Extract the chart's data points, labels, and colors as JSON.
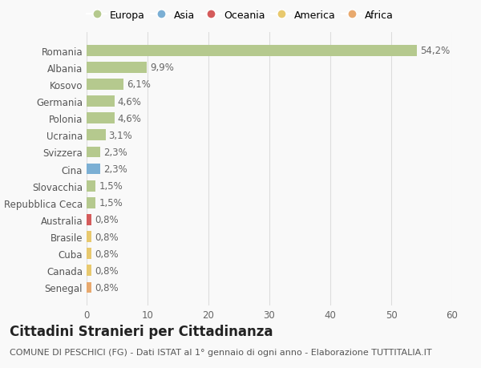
{
  "countries": [
    "Romania",
    "Albania",
    "Kosovo",
    "Germania",
    "Polonia",
    "Ucraina",
    "Svizzera",
    "Cina",
    "Slovacchia",
    "Repubblica Ceca",
    "Australia",
    "Brasile",
    "Cuba",
    "Canada",
    "Senegal"
  ],
  "values": [
    54.2,
    9.9,
    6.1,
    4.6,
    4.6,
    3.1,
    2.3,
    2.3,
    1.5,
    1.5,
    0.8,
    0.8,
    0.8,
    0.8,
    0.8
  ],
  "labels": [
    "54,2%",
    "9,9%",
    "6,1%",
    "4,6%",
    "4,6%",
    "3,1%",
    "2,3%",
    "2,3%",
    "1,5%",
    "1,5%",
    "0,8%",
    "0,8%",
    "0,8%",
    "0,8%",
    "0,8%"
  ],
  "colors": [
    "#b5c98e",
    "#b5c98e",
    "#b5c98e",
    "#b5c98e",
    "#b5c98e",
    "#b5c98e",
    "#b5c98e",
    "#7bafd4",
    "#b5c98e",
    "#b5c98e",
    "#d45b5b",
    "#e8c96e",
    "#e8c96e",
    "#e8c96e",
    "#e8a96e"
  ],
  "legend_labels": [
    "Europa",
    "Asia",
    "Oceania",
    "America",
    "Africa"
  ],
  "legend_colors": [
    "#b5c98e",
    "#7bafd4",
    "#d45b5b",
    "#e8c96e",
    "#e8a96e"
  ],
  "title": "Cittadini Stranieri per Cittadinanza",
  "subtitle": "COMUNE DI PESCHICI (FG) - Dati ISTAT al 1° gennaio di ogni anno - Elaborazione TUTTITALIA.IT",
  "xlim": [
    0,
    60
  ],
  "xticks": [
    0,
    10,
    20,
    30,
    40,
    50,
    60
  ],
  "bg_color": "#f9f9f9",
  "grid_color": "#dddddd",
  "bar_height": 0.65,
  "label_fontsize": 8.5,
  "tick_fontsize": 8.5,
  "title_fontsize": 12,
  "subtitle_fontsize": 8
}
